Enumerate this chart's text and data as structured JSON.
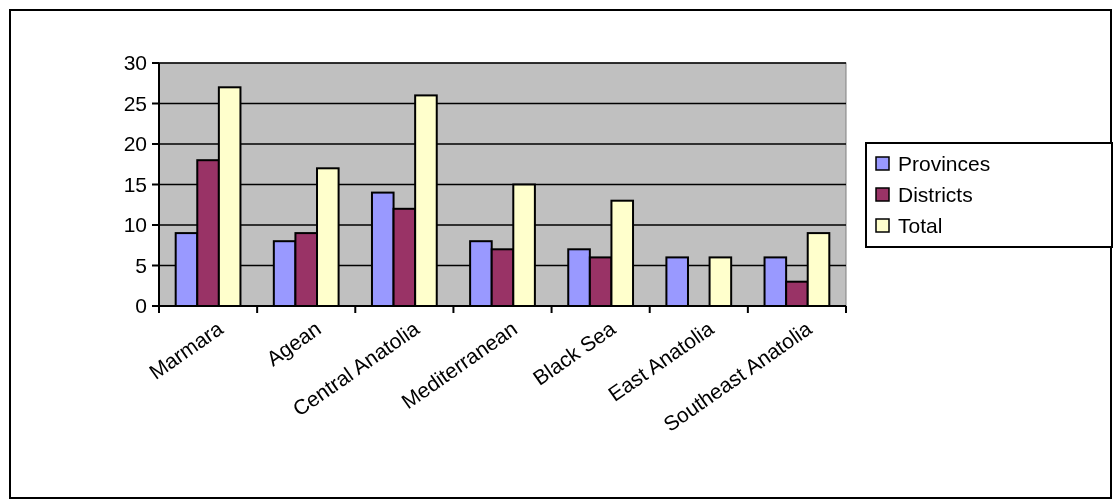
{
  "chart_data": {
    "type": "bar",
    "categories": [
      "Marmara",
      "Agean",
      "Central Anatolia",
      "Mediterranean",
      "Black Sea",
      "East Anatolia",
      "Southeast Anatolia"
    ],
    "series": [
      {
        "name": "Provinces",
        "color": "#9999ff",
        "values": [
          9,
          8,
          14,
          8,
          7,
          6,
          6
        ]
      },
      {
        "name": "Districts",
        "color": "#993366",
        "values": [
          18,
          9,
          12,
          7,
          6,
          0,
          3
        ]
      },
      {
        "name": "Total",
        "color": "#ffffcc",
        "values": [
          27,
          17,
          26,
          15,
          13,
          6,
          9
        ]
      }
    ],
    "ylim": [
      0,
      30
    ],
    "yticks": [
      0,
      5,
      10,
      15,
      20,
      25,
      30
    ],
    "grid": "y",
    "legend": "right"
  }
}
